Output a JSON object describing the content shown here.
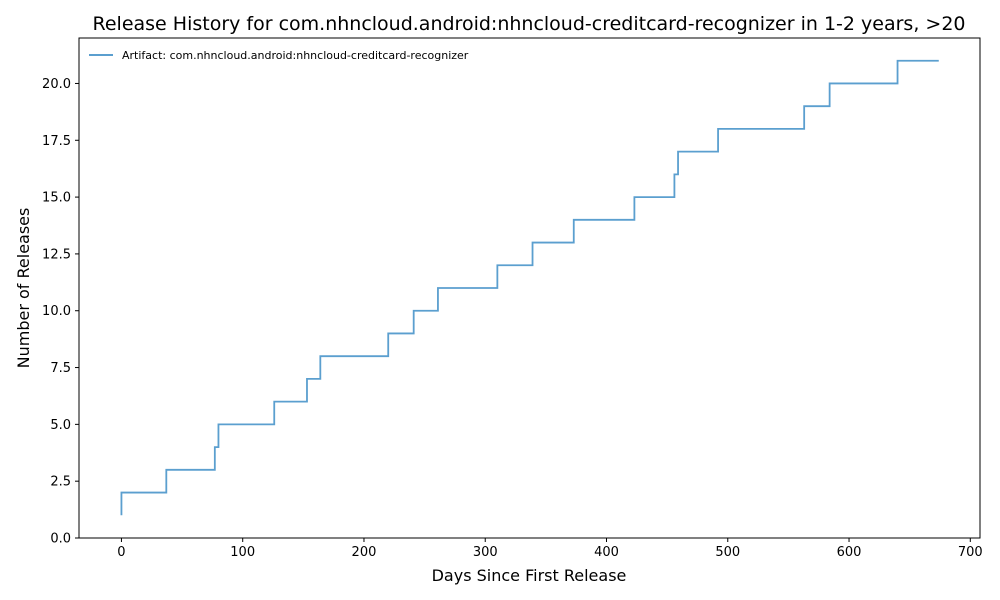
{
  "chart_data": {
    "type": "line",
    "drawstyle": "steps-post",
    "title": "Release History for com.nhncloud.android:nhncloud-creditcard-recognizer in 1-2 years, >20",
    "xlabel": "Days Since First Release",
    "ylabel": "Number of Releases",
    "xlim": [
      -35,
      708
    ],
    "ylim": [
      0,
      22
    ],
    "xticks": [
      0,
      100,
      200,
      300,
      400,
      500,
      600,
      700
    ],
    "yticks": [
      0.0,
      2.5,
      5.0,
      7.5,
      10.0,
      12.5,
      15.0,
      17.5,
      20.0
    ],
    "ytick_labels": [
      "0.0",
      "2.5",
      "5.0",
      "7.5",
      "10.0",
      "12.5",
      "15.0",
      "17.5",
      "20.0"
    ],
    "grid": false,
    "legend": "top-left",
    "series": [
      {
        "name": "Artifact: com.nhncloud.android:nhncloud-creditcard-recognizer",
        "color": "#5b9fcf",
        "x": [
          0,
          0,
          37,
          77,
          80,
          126,
          153,
          164,
          220,
          241,
          261,
          310,
          339,
          373,
          423,
          456,
          459,
          492,
          563,
          584,
          640,
          674
        ],
        "y": [
          1,
          2,
          3,
          4,
          5,
          6,
          7,
          8,
          9,
          10,
          11,
          12,
          13,
          14,
          15,
          16,
          17,
          18,
          19,
          20,
          21,
          21
        ]
      }
    ]
  }
}
